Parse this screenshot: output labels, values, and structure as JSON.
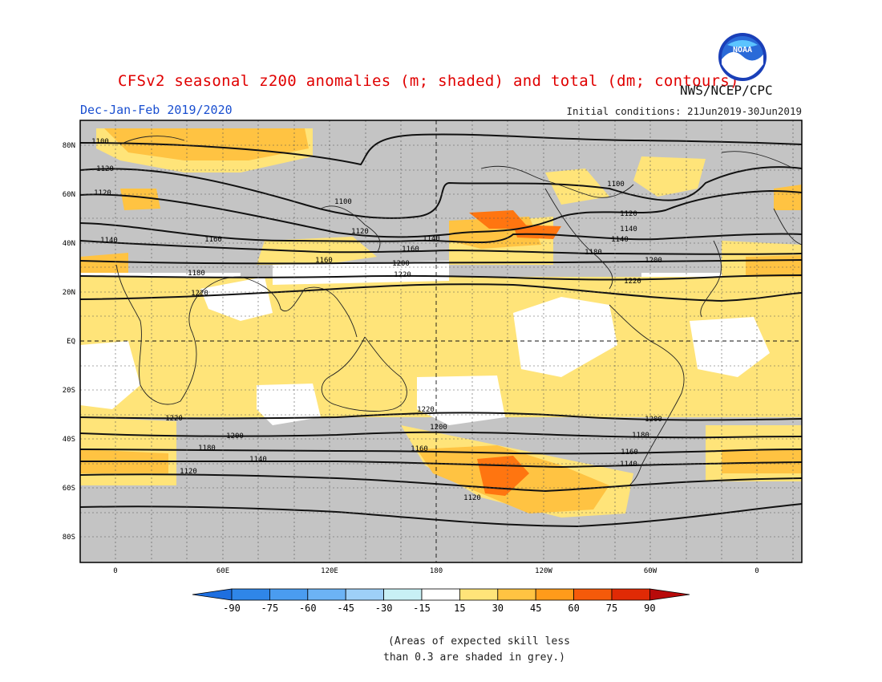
{
  "header": {
    "title": "CFSv2 seasonal z200 anomalies (m; shaded) and total (dm; contours)",
    "season": "Dec-Jan-Feb 2019/2020",
    "initial_conditions": "Initial conditions: 21Jun2019-30Jun2019",
    "agency": "NWS/NCEP/CPC",
    "logo_text": "NOAA"
  },
  "map": {
    "projection": "cylindrical-equidistant",
    "longitude_labels": [
      "0",
      "60E",
      "120E",
      "180",
      "120W",
      "60W",
      "0"
    ],
    "latitude_labels": [
      "80N",
      "60N",
      "40N",
      "20N",
      "EQ",
      "20S",
      "40S",
      "60S",
      "80S"
    ],
    "contour_labels": [
      "1100",
      "1100",
      "1100",
      "1120",
      "1120",
      "1120",
      "1120",
      "1140",
      "1140",
      "1140",
      "1140",
      "1160",
      "1160",
      "1160",
      "1180",
      "1180",
      "1200",
      "1200",
      "1220",
      "1220",
      "1220",
      "1220",
      "1220",
      "1200",
      "1200",
      "1200",
      "1180",
      "1180",
      "1160",
      "1160",
      "1140",
      "1140",
      "1120",
      "1120"
    ]
  },
  "colorbar": {
    "ticks": [
      "-90",
      "-75",
      "-60",
      "-45",
      "-30",
      "-15",
      "15",
      "30",
      "45",
      "60",
      "75",
      "90"
    ],
    "colors": [
      "#1e6fe0",
      "#2f86e8",
      "#4a9cf0",
      "#6cb3f5",
      "#9ed0f8",
      "#c8f0f5",
      "#ffffff",
      "#ffe479",
      "#ffc342",
      "#ff9b1a",
      "#f55a0a",
      "#e02a05",
      "#b80a0a"
    ]
  },
  "notes": {
    "line1": "(Areas of expected skill less",
    "line2": "than 0.3 are shaded in grey.)"
  },
  "colors": {
    "grey_low_skill": "#c4c4c4",
    "title": "#e00000",
    "season": "#1a4fd0"
  }
}
